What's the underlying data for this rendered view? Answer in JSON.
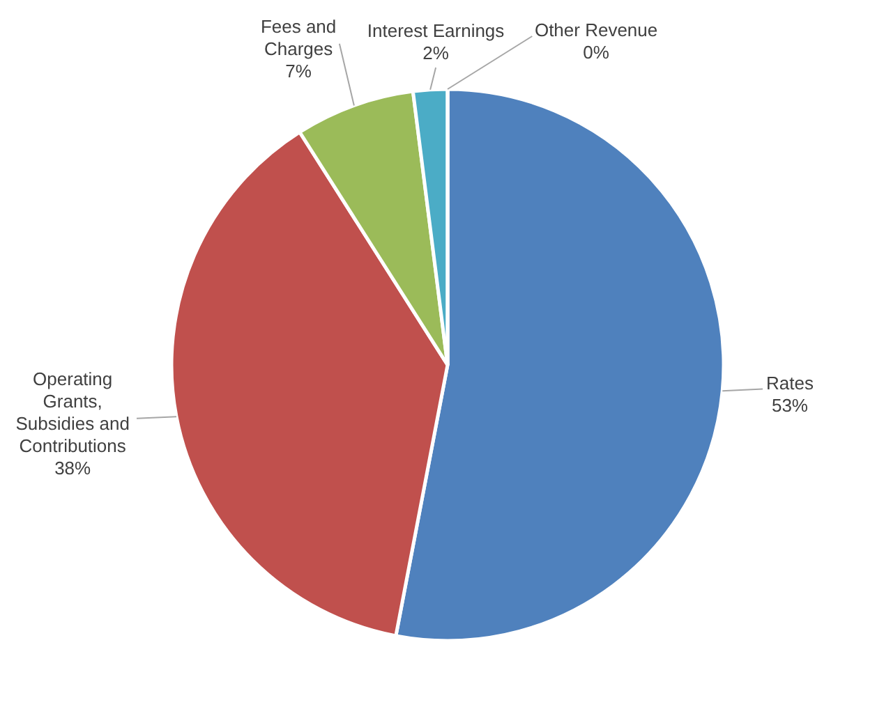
{
  "chart_data": {
    "type": "pie",
    "categories": [
      "Rates",
      "Operating Grants, Subsidies and Contributions",
      "Fees and Charges",
      "Interest Earnings",
      "Other Revenue"
    ],
    "values": [
      53,
      38,
      7,
      2,
      0
    ],
    "colors": [
      "#4f81bd",
      "#c0504d",
      "#9bbb59",
      "#4bacc6",
      "#8064a2"
    ],
    "value_labels": [
      "53%",
      "38%",
      "7%",
      "2%",
      "0%"
    ]
  }
}
